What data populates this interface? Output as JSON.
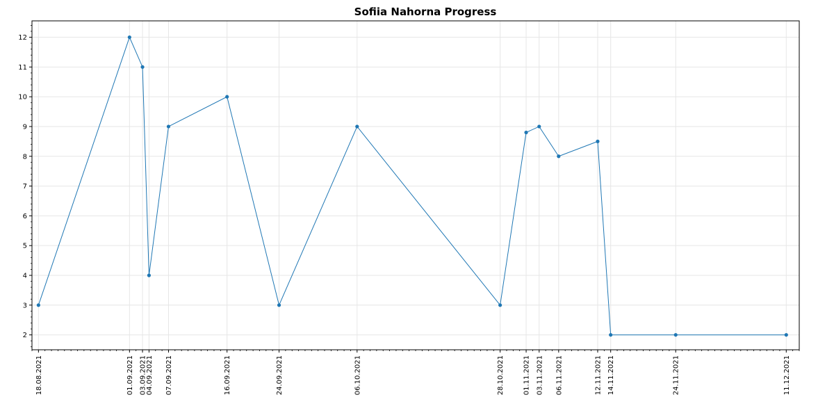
{
  "chart_data": {
    "type": "line",
    "title": "Sofiia Nahorna Progress",
    "xlabel": "",
    "ylabel": "",
    "x": [
      "18.08.2021",
      "01.09.2021",
      "03.09.2021",
      "04.09.2021",
      "07.09.2021",
      "16.09.2021",
      "24.09.2021",
      "06.10.2021",
      "28.10.2021",
      "01.11.2021",
      "03.11.2021",
      "06.11.2021",
      "12.11.2021",
      "14.11.2021",
      "24.11.2021",
      "11.12.2021"
    ],
    "series": [
      {
        "values": [
          3,
          12,
          11,
          4,
          9,
          10,
          3,
          9,
          3,
          8.8,
          9,
          8,
          8.5,
          2,
          2,
          2
        ]
      }
    ],
    "ylim": [
      1.5,
      12.55
    ],
    "xlim": [
      "17.08.2021",
      "13.12.2021"
    ],
    "yticks": [
      2,
      3,
      4,
      5,
      6,
      7,
      8,
      9,
      10,
      11,
      12
    ],
    "grid": true,
    "line_color": "#1f77b4"
  }
}
